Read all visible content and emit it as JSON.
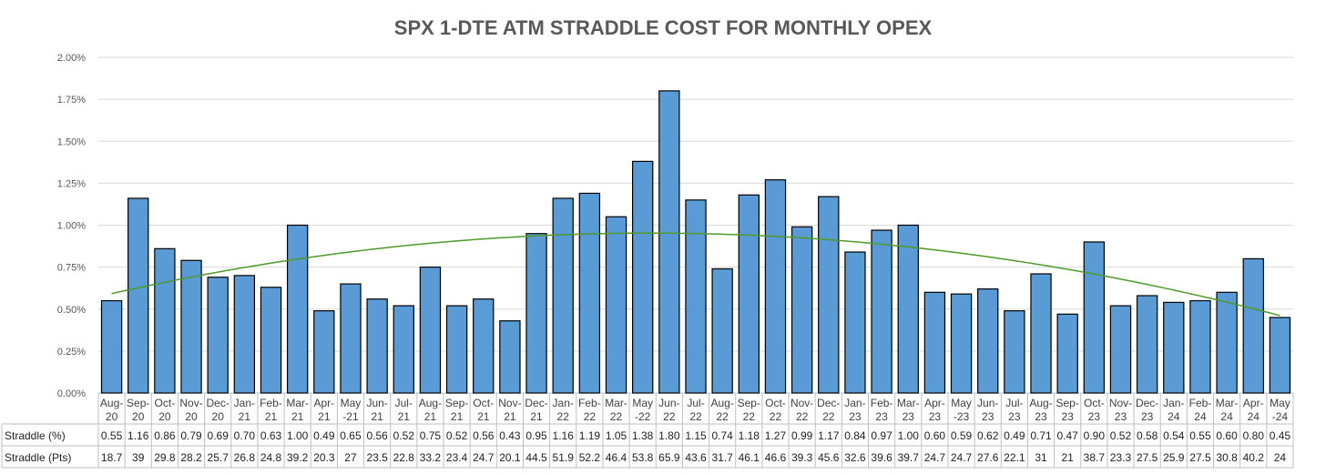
{
  "chart_data": {
    "type": "bar",
    "title": "SPX 1-DTE ATM STRADDLE COST FOR MONTHLY OPEX",
    "ylim": [
      0,
      2.0
    ],
    "yticks": [
      "0.00%",
      "0.25%",
      "0.50%",
      "0.75%",
      "1.00%",
      "1.25%",
      "1.50%",
      "1.75%",
      "2.00%"
    ],
    "categories": [
      [
        "Aug-",
        "20"
      ],
      [
        "Sep-",
        "20"
      ],
      [
        "Oct-",
        "20"
      ],
      [
        "Nov-",
        "20"
      ],
      [
        "Dec-",
        "20"
      ],
      [
        "Jan-",
        "21"
      ],
      [
        "Feb-",
        "21"
      ],
      [
        "Mar-",
        "21"
      ],
      [
        "Apr-",
        "21"
      ],
      [
        "May",
        "-21"
      ],
      [
        "Jun-",
        "21"
      ],
      [
        "Jul-",
        "21"
      ],
      [
        "Aug-",
        "21"
      ],
      [
        "Sep-",
        "21"
      ],
      [
        "Oct-",
        "21"
      ],
      [
        "Nov-",
        "21"
      ],
      [
        "Dec-",
        "21"
      ],
      [
        "Jan-",
        "22"
      ],
      [
        "Feb-",
        "22"
      ],
      [
        "Mar-",
        "22"
      ],
      [
        "May",
        "-22"
      ],
      [
        "Jun-",
        "22"
      ],
      [
        "Jul-",
        "22"
      ],
      [
        "Aug-",
        "22"
      ],
      [
        "Sep-",
        "22"
      ],
      [
        "Oct-",
        "22"
      ],
      [
        "Nov-",
        "22"
      ],
      [
        "Dec-",
        "22"
      ],
      [
        "Jan-",
        "23"
      ],
      [
        "Feb-",
        "23"
      ],
      [
        "Mar-",
        "23"
      ],
      [
        "Apr-",
        "23"
      ],
      [
        "May",
        "-23"
      ],
      [
        "Jun-",
        "23"
      ],
      [
        "Jul-",
        "23"
      ],
      [
        "Aug-",
        "23"
      ],
      [
        "Sep-",
        "23"
      ],
      [
        "Oct-",
        "23"
      ],
      [
        "Nov-",
        "23"
      ],
      [
        "Dec-",
        "23"
      ],
      [
        "Jan-",
        "24"
      ],
      [
        "Feb-",
        "24"
      ],
      [
        "Mar-",
        "24"
      ],
      [
        "Apr-",
        "24"
      ],
      [
        "May",
        "-24"
      ]
    ],
    "series": [
      {
        "name": "Straddle (%)",
        "values": [
          0.55,
          1.16,
          0.86,
          0.79,
          0.69,
          0.7,
          0.63,
          1.0,
          0.49,
          0.65,
          0.56,
          0.52,
          0.75,
          0.52,
          0.56,
          0.43,
          0.95,
          1.16,
          1.19,
          1.05,
          1.38,
          1.8,
          1.15,
          0.74,
          1.18,
          1.27,
          0.99,
          1.17,
          0.84,
          0.97,
          1.0,
          0.6,
          0.59,
          0.62,
          0.49,
          0.71,
          0.47,
          0.9,
          0.52,
          0.58,
          0.54,
          0.55,
          0.6,
          0.8,
          0.45
        ],
        "labels": [
          "0.55",
          "1.16",
          "0.86",
          "0.79",
          "0.69",
          "0.70",
          "0.63",
          "1.00",
          "0.49",
          "0.65",
          "0.56",
          "0.52",
          "0.75",
          "0.52",
          "0.56",
          "0.43",
          "0.95",
          "1.16",
          "1.19",
          "1.05",
          "1.38",
          "1.80",
          "1.15",
          "0.74",
          "1.18",
          "1.27",
          "0.99",
          "1.17",
          "0.84",
          "0.97",
          "1.00",
          "0.60",
          "0.59",
          "0.62",
          "0.49",
          "0.71",
          "0.47",
          "0.90",
          "0.52",
          "0.58",
          "0.54",
          "0.55",
          "0.60",
          "0.80",
          "0.45"
        ]
      },
      {
        "name": "Straddle (Pts)",
        "labels": [
          "18.7",
          "39",
          "29.8",
          "28.2",
          "25.7",
          "26.8",
          "24.8",
          "39.2",
          "20.3",
          "27",
          "23.5",
          "22.8",
          "33.2",
          "23.4",
          "24.7",
          "20.1",
          "44.5",
          "51.9",
          "52.2",
          "46.4",
          "53.8",
          "65.9",
          "43.6",
          "31.7",
          "46.1",
          "46.6",
          "39.3",
          "45.6",
          "32.6",
          "39.6",
          "39.7",
          "24.7",
          "24.7",
          "27.6",
          "22.1",
          "31",
          "21",
          "38.7",
          "23.3",
          "27.5",
          "25.9",
          "27.5",
          "30.8",
          "40.2",
          "24"
        ]
      }
    ],
    "trendline": {
      "type": "polynomial",
      "order": 2,
      "color": "#4e9a2a"
    },
    "colors": {
      "bar": "#5b9bd5",
      "bar_edge": "#000000",
      "grid": "#d9d9d9",
      "table_border": "#bfbfbf"
    }
  }
}
